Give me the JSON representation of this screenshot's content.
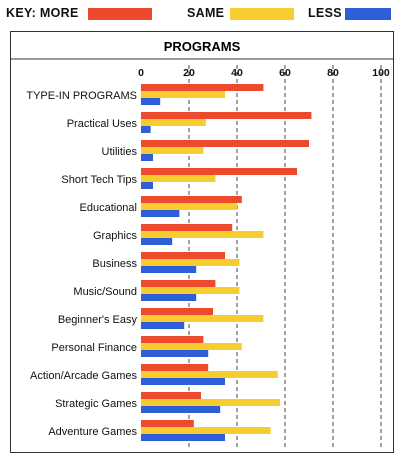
{
  "legend": {
    "key_label": "KEY: MORE",
    "same_label": "SAME",
    "less_label": "LESS"
  },
  "colors": {
    "more": "#ec4a2a",
    "same": "#f5cd2e",
    "less": "#2f5fd6"
  },
  "chart_data": {
    "type": "bar",
    "orientation": "horizontal",
    "title": "PROGRAMS",
    "xlim": [
      0,
      100
    ],
    "xticks": [
      0,
      20,
      40,
      60,
      80,
      100
    ],
    "grid": true,
    "legend_position": "top",
    "categories": [
      "TYPE-IN PROGRAMS",
      "Practical Uses",
      "Utilities",
      "Short Tech Tips",
      "Educational",
      "Graphics",
      "Business",
      "Music/Sound",
      "Beginner's Easy",
      "Personal Finance",
      "Action/Arcade Games",
      "Strategic Games",
      "Adventure Games"
    ],
    "series": [
      {
        "name": "MORE",
        "values": [
          51,
          71,
          70,
          65,
          42,
          38,
          35,
          31,
          30,
          26,
          28,
          25,
          22
        ]
      },
      {
        "name": "SAME",
        "values": [
          35,
          27,
          26,
          31,
          40,
          51,
          41,
          41,
          51,
          42,
          57,
          58,
          54
        ]
      },
      {
        "name": "LESS",
        "values": [
          8,
          4,
          5,
          5,
          16,
          13,
          23,
          23,
          18,
          28,
          35,
          33,
          35
        ]
      }
    ]
  }
}
